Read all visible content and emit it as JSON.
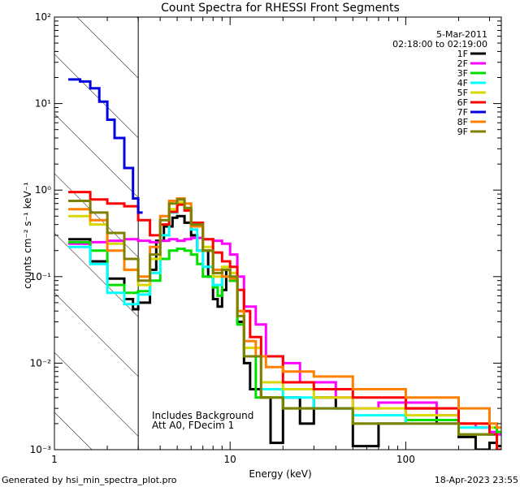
{
  "chart_data": {
    "type": "line",
    "title": "Count Spectra for RHESSI Front Segments",
    "xlabel": "Energy (keV)",
    "ylabel": "counts cm⁻² s⁻¹ keV⁻¹",
    "xscale": "log",
    "yscale": "log",
    "xlim": [
      1,
      350
    ],
    "ylim": [
      0.001,
      100
    ],
    "x_ticks": [
      {
        "value": 1,
        "label": "1"
      },
      {
        "value": 10,
        "label": "10"
      },
      {
        "value": 100,
        "label": "100"
      }
    ],
    "y_ticks": [
      {
        "value": 0.001,
        "label": "10⁻³"
      },
      {
        "value": 0.01,
        "label": "10⁻²"
      },
      {
        "value": 0.1,
        "label": "10⁻¹"
      },
      {
        "value": 1,
        "label": "10⁰"
      },
      {
        "value": 10,
        "label": "10¹"
      },
      {
        "value": 100,
        "label": "10²"
      }
    ],
    "excluded_region": {
      "from": 1,
      "to": 3
    },
    "date_label": "5-Mar-2011",
    "time_range_label": "02:18:00 to 02:19:00",
    "annotation_lines": [
      "Includes Background",
      "Att A0, FDecim 1"
    ],
    "series": [
      {
        "name": "1F",
        "color": "#000000",
        "energy": [
          1.2,
          1.6,
          2.0,
          2.5,
          2.8,
          3.0,
          3.5,
          3.8,
          4.2,
          4.7,
          5.0,
          5.5,
          6.0,
          6.5,
          7.5,
          8.0,
          8.5,
          9.0,
          9.5,
          10.0,
          11.0,
          12.0,
          13.0,
          15.0,
          17.0,
          20.0,
          25.0,
          30.0,
          40.0,
          50.0,
          70.0,
          100.0,
          150.0,
          200.0,
          250.0,
          300.0,
          330.0
        ],
        "values": [
          0.27,
          0.15,
          0.095,
          0.055,
          0.042,
          0.05,
          0.12,
          0.26,
          0.38,
          0.48,
          0.5,
          0.42,
          0.3,
          0.2,
          0.1,
          0.055,
          0.045,
          0.07,
          0.12,
          0.09,
          0.03,
          0.01,
          0.005,
          0.004,
          0.0012,
          0.004,
          0.002,
          0.004,
          0.003,
          0.0011,
          0.002,
          0.003,
          0.002,
          0.0014,
          0.001,
          0.0012,
          0.0011
        ]
      },
      {
        "name": "2F",
        "color": "#ff00ff",
        "energy": [
          1.2,
          1.6,
          2.0,
          2.5,
          3.0,
          3.5,
          4.0,
          4.5,
          5.0,
          5.5,
          6.0,
          7.0,
          8.0,
          9.0,
          10.0,
          11.0,
          12.0,
          14.0,
          16.0,
          20.0,
          25.0,
          30.0,
          40.0,
          50.0,
          70.0,
          100.0,
          150.0,
          200.0,
          250.0,
          300.0,
          330.0
        ],
        "values": [
          0.24,
          0.25,
          0.26,
          0.27,
          0.26,
          0.25,
          0.26,
          0.27,
          0.26,
          0.27,
          0.28,
          0.27,
          0.26,
          0.24,
          0.18,
          0.1,
          0.045,
          0.028,
          0.012,
          0.01,
          0.006,
          0.006,
          0.004,
          0.003,
          0.0035,
          0.0035,
          0.0025,
          0.002,
          0.0018,
          0.0016,
          0.0015
        ]
      },
      {
        "name": "3F",
        "color": "#00e000",
        "energy": [
          1.2,
          1.6,
          2.0,
          2.5,
          3.0,
          3.5,
          4.0,
          4.5,
          5.0,
          5.5,
          6.0,
          6.5,
          7.0,
          8.0,
          8.5,
          9.0,
          10.0,
          11.0,
          12.0,
          14.0,
          16.0,
          20.0,
          30.0,
          50.0,
          100.0,
          200.0,
          300.0,
          330.0
        ],
        "values": [
          0.25,
          0.2,
          0.08,
          0.065,
          0.068,
          0.09,
          0.16,
          0.2,
          0.21,
          0.2,
          0.18,
          0.14,
          0.1,
          0.075,
          0.06,
          0.12,
          0.09,
          0.028,
          0.012,
          0.004,
          0.004,
          0.003,
          0.003,
          0.002,
          0.0022,
          0.0015,
          0.0018,
          0.0016
        ]
      },
      {
        "name": "4F",
        "color": "#00ffff",
        "energy": [
          1.2,
          1.6,
          2.0,
          2.5,
          3.0,
          3.5,
          4.0,
          4.5,
          5.0,
          5.5,
          6.0,
          6.5,
          7.0,
          8.0,
          9.0,
          10.0,
          11.0,
          12.0,
          15.0,
          20.0,
          30.0,
          50.0,
          100.0,
          200.0,
          300.0
        ],
        "values": [
          0.22,
          0.14,
          0.065,
          0.048,
          0.062,
          0.11,
          0.3,
          0.55,
          0.7,
          0.6,
          0.35,
          0.2,
          0.13,
          0.08,
          0.1,
          0.1,
          0.04,
          0.012,
          0.005,
          0.004,
          0.003,
          0.0025,
          0.002,
          0.0018,
          0.0015
        ]
      },
      {
        "name": "5F",
        "color": "#d8d800",
        "energy": [
          1.2,
          1.6,
          2.0,
          2.5,
          3.0,
          3.5,
          4.0,
          4.5,
          5.0,
          5.5,
          6.0,
          7.0,
          8.0,
          9.0,
          10.0,
          11.0,
          12.0,
          15.0,
          20.0,
          30.0,
          50.0,
          100.0,
          200.0,
          300.0
        ],
        "values": [
          0.5,
          0.4,
          0.24,
          0.12,
          0.08,
          0.16,
          0.4,
          0.6,
          0.72,
          0.6,
          0.4,
          0.22,
          0.1,
          0.13,
          0.11,
          0.04,
          0.015,
          0.006,
          0.005,
          0.004,
          0.003,
          0.0025,
          0.002,
          0.0018
        ]
      },
      {
        "name": "6F",
        "color": "#ff0000",
        "energy": [
          1.2,
          1.6,
          2.0,
          2.5,
          3.0,
          3.5,
          4.0,
          4.5,
          5.0,
          5.5,
          6.0,
          7.0,
          8.0,
          9.0,
          10.0,
          11.0,
          12.0,
          13.0,
          15.0,
          20.0,
          30.0,
          50.0,
          100.0,
          200.0,
          300.0,
          330.0
        ],
        "values": [
          0.95,
          0.78,
          0.7,
          0.65,
          0.45,
          0.3,
          0.4,
          0.56,
          0.68,
          0.58,
          0.42,
          0.27,
          0.19,
          0.15,
          0.13,
          0.07,
          0.04,
          0.02,
          0.012,
          0.006,
          0.005,
          0.004,
          0.003,
          0.002,
          0.0015,
          0.001
        ]
      },
      {
        "name": "7F",
        "color": "#0000e0",
        "energy": [
          1.2,
          1.4,
          1.6,
          1.8,
          2.0,
          2.2,
          2.5,
          2.8,
          3.0
        ],
        "values": [
          19.0,
          18.0,
          15.0,
          10.5,
          6.5,
          4.0,
          1.8,
          0.8,
          0.55
        ]
      },
      {
        "name": "8F",
        "color": "#ff8000",
        "energy": [
          1.2,
          1.6,
          2.0,
          2.5,
          3.0,
          3.5,
          4.0,
          4.5,
          5.0,
          5.5,
          6.0,
          7.0,
          8.0,
          9.0,
          10.0,
          11.0,
          12.0,
          14.0,
          16.0,
          20.0,
          30.0,
          50.0,
          100.0,
          200.0,
          300.0,
          330.0
        ],
        "values": [
          0.6,
          0.45,
          0.2,
          0.12,
          0.1,
          0.22,
          0.5,
          0.75,
          0.8,
          0.7,
          0.38,
          0.2,
          0.12,
          0.1,
          0.095,
          0.04,
          0.018,
          0.012,
          0.009,
          0.008,
          0.007,
          0.005,
          0.004,
          0.003,
          0.002,
          0.0018
        ]
      },
      {
        "name": "9F",
        "color": "#808000",
        "energy": [
          1.2,
          1.6,
          2.0,
          2.5,
          3.0,
          3.5,
          4.0,
          4.5,
          5.0,
          5.5,
          6.0,
          7.0,
          8.0,
          9.0,
          10.0,
          11.0,
          12.0,
          15.0,
          20.0,
          30.0,
          50.0,
          100.0,
          200.0,
          300.0
        ],
        "values": [
          0.75,
          0.55,
          0.32,
          0.16,
          0.09,
          0.18,
          0.45,
          0.7,
          0.78,
          0.62,
          0.4,
          0.2,
          0.11,
          0.12,
          0.1,
          0.035,
          0.012,
          0.004,
          0.003,
          0.003,
          0.002,
          0.002,
          0.0015,
          0.0015
        ]
      }
    ]
  },
  "footer": {
    "generated_by": "Generated by hsi_min_spectra_plot.pro",
    "timestamp": "18-Apr-2023 23:55"
  }
}
